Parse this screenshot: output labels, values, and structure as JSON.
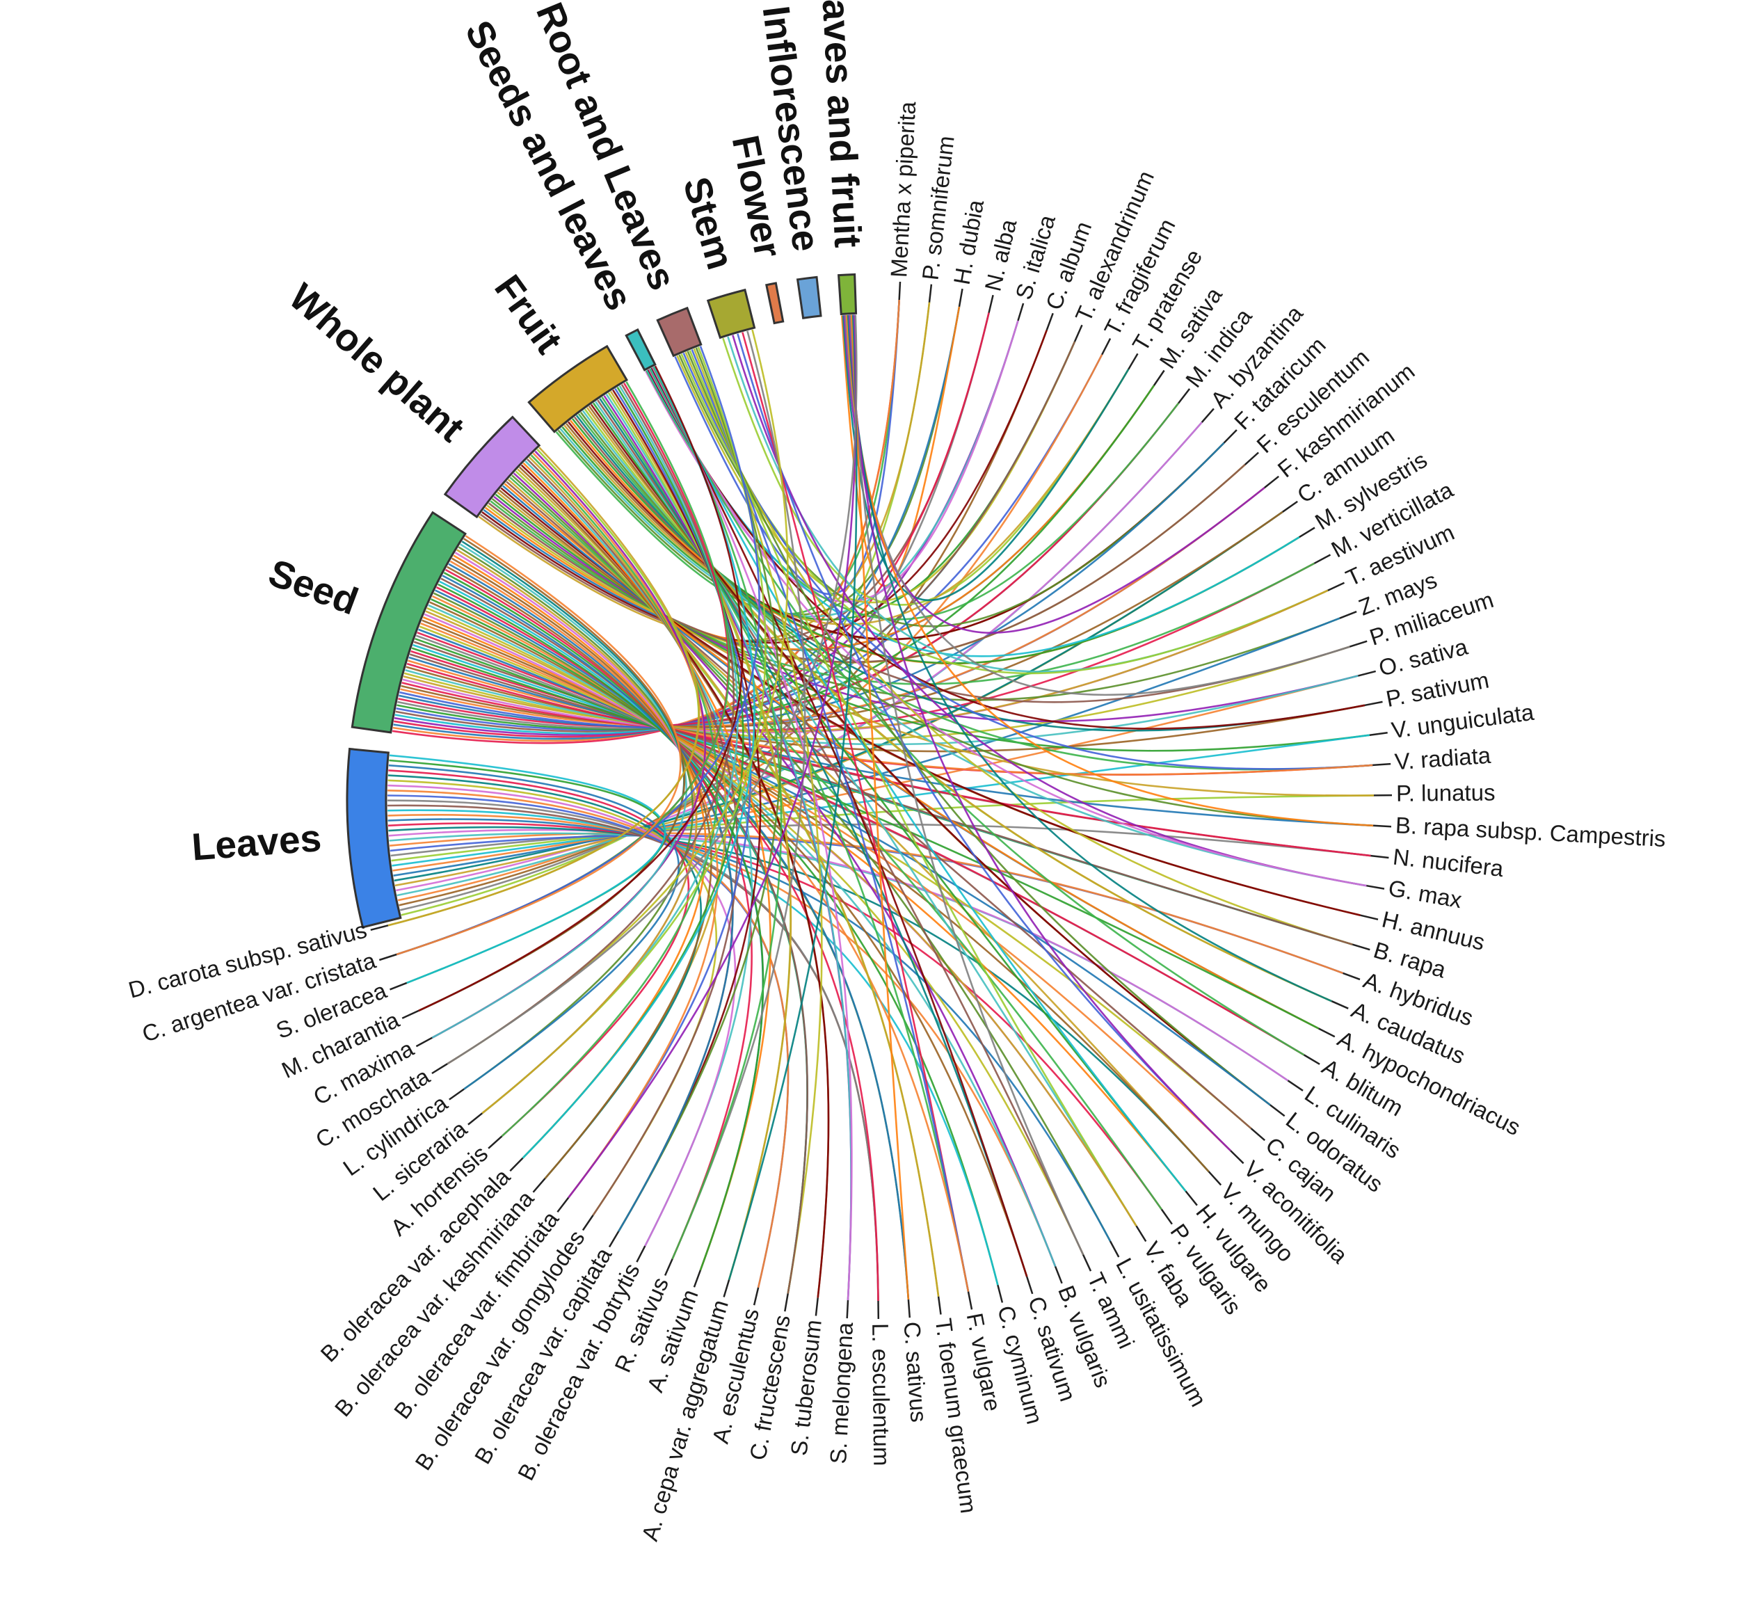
{
  "groups": [
    {
      "name": "Leaves",
      "color": "#3b82e6",
      "weight": 56
    },
    {
      "name": "Seed",
      "color": "#4caf6d",
      "weight": 72
    },
    {
      "name": "Whole plant",
      "color": "#c08ce8",
      "weight": 32
    },
    {
      "name": "Fruit",
      "color": "#d4a82a",
      "weight": 30
    },
    {
      "name": "Seeds and leaves",
      "color": "#3bbfbf",
      "weight": 4
    },
    {
      "name": "Root and Leaves",
      "color": "#a86b6b",
      "weight": 10
    },
    {
      "name": "Stem",
      "color": "#a6a832",
      "weight": 12
    },
    {
      "name": "Flower",
      "color": "#e07b4a",
      "weight": 3
    },
    {
      "name": "Inflorescence",
      "color": "#6aa3d8",
      "weight": 6
    },
    {
      "name": "Leaves and fruit",
      "color": "#7fb43a",
      "weight": 5
    }
  ],
  "species": [
    "Mentha x piperita",
    "P. somniferum",
    "H. dubia",
    "N. alba",
    "S. italica",
    "C. album",
    "T. alexandrinum",
    "T. fragiferum",
    "T. pratense",
    "M. sativa",
    "M. indica",
    "A. byzantina",
    "F. tataricum",
    "F. esculentum",
    "F. kashmirianum",
    "C. annuum",
    "M. sylvestris",
    "M. verticillata",
    "T. aestivum",
    "Z. mays",
    "P. miliaceum",
    "O. sativa",
    "P. sativum",
    "V. unguiculata",
    "V. radiata",
    "P. lunatus",
    "B. rapa subsp. Campestris",
    "N. nucifera",
    "G. max",
    "H. annuus",
    "B. rapa",
    "A. hybridus",
    "A. caudatus",
    "A. hypochondriacus",
    "A. blitum",
    "L. culinaris",
    "L. odoratus",
    "C. cajan",
    "V. aconitifolia",
    "V. mungo",
    "H. vulgare",
    "P. vulgaris",
    "V. faba",
    "L. usitatissimum",
    "T. ammi",
    "B. vulgaris",
    "C. sativum",
    "C. cyminum",
    "F. vulgare",
    "T. foenum graecum",
    "C. sativus",
    "L. esculentum",
    "S. melongena",
    "S. tuberosum",
    "C. fructescens",
    "A. esculentus",
    "A. cepa var. aggregatum",
    "A. sativum",
    "R. sativus",
    "B. oleracea var. botrytis",
    "B. oleracea var. capitata",
    "B. oleracea var. gongylodes",
    "B. oleracea var. fimbriata",
    "B. oleracea var. kashmiriana",
    "B. oleracea var. acephala",
    "A. hortensis",
    "L. siceraria",
    "L. cylindrica",
    "C. moschata",
    "C. maxima",
    "M. charantia",
    "S. oleracea",
    "C. argentea var. cristata",
    "D. carota subsp. sativus"
  ],
  "palette": [
    "#e6194b",
    "#3cb44b",
    "#4363d8",
    "#f58231",
    "#911eb4",
    "#46c0c0",
    "#d36bd6",
    "#9acd32",
    "#c9a227",
    "#008080",
    "#9a6324",
    "#800000",
    "#5a8f29",
    "#1f77b4",
    "#ff7f0e",
    "#2ca02c",
    "#17becf",
    "#bcbd22",
    "#8c564b",
    "#7f7f7f"
  ]
}
